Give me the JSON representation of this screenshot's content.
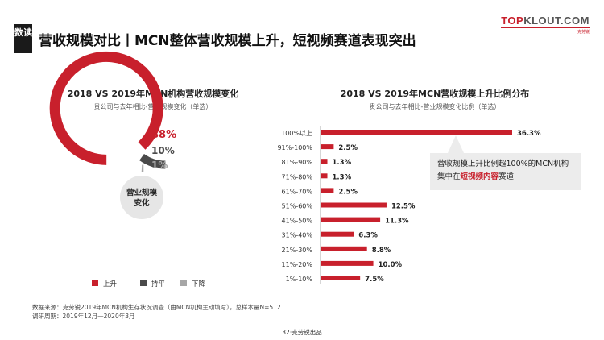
{
  "header": {
    "badge": "数读",
    "title": "营收规模对比丨MCN整体营收规模上升，短视频赛道表现突出",
    "logo_accent": "TOP",
    "logo_rest": "KLOUT.COM",
    "logo_sub": "克劳锐"
  },
  "left_panel": {
    "title": "2018 VS 2019年MCN机构营收规模变化",
    "subtitle": "贵公司与去年相比-营收规模变化（单选）",
    "center_label_line1": "营业规模",
    "center_label_line2": "变化"
  },
  "right_panel": {
    "title": "2018 VS 2019年MCN营收规模上升比例分布",
    "subtitle": "贵公司与去年相比-营业规模变化比例（单选）",
    "callout_prefix": "营收规模上升比例超100%的MCN机构集中在",
    "callout_highlight": "短视频内容",
    "callout_suffix": "赛道"
  },
  "chart_data": [
    {
      "type": "pie",
      "title": "2018 VS 2019年MCN机构营收规模变化",
      "categories": [
        "上升",
        "持平",
        "下降"
      ],
      "values": [
        88,
        10,
        1
      ],
      "value_labels": [
        "88%",
        "10%",
        "1%"
      ],
      "colors": [
        "#c8202c",
        "#4a4a4a",
        "#a6a6a6"
      ],
      "legend_position": "bottom"
    },
    {
      "type": "bar",
      "orientation": "horizontal",
      "title": "2018 VS 2019年MCN营收规模上升比例分布",
      "categories": [
        "100%以上",
        "91%-100%",
        "81%-90%",
        "71%-80%",
        "61%-70%",
        "51%-60%",
        "41%-50%",
        "31%-40%",
        "21%-30%",
        "11%-20%",
        "1%-10%"
      ],
      "values": [
        36.3,
        2.5,
        1.3,
        1.3,
        2.5,
        12.5,
        11.3,
        6.3,
        8.8,
        10.0,
        7.5
      ],
      "value_labels": [
        "36.3%",
        "2.5%",
        "1.3%",
        "1.3%",
        "2.5%",
        "12.5%",
        "11.3%",
        "6.3%",
        "8.8%",
        "10.0%",
        "7.5%"
      ],
      "color": "#c8202c"
    }
  ],
  "footer": {
    "source": "数据来源：克劳锐2019年MCN机构生存状况调查（由MCN机构主动填写），总样本量N=512",
    "period": "调研周期：2019年12月—2020年3月",
    "page": "32·克劳锐出品"
  },
  "colors": {
    "accent": "#c8202c",
    "dark": "#4a4a4a",
    "light": "#a6a6a6"
  }
}
